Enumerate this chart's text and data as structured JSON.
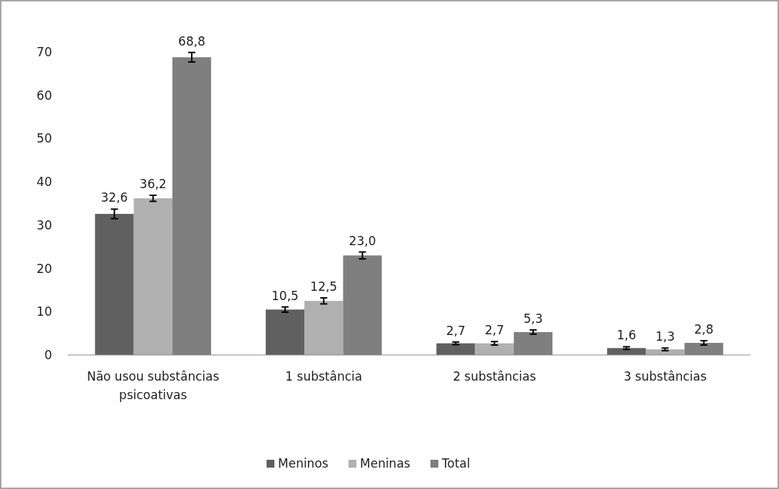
{
  "chart_data": {
    "type": "bar",
    "categories": [
      "Não usou substâncias psicoativas",
      "1 substância",
      "2 substâncias",
      "3 substâncias"
    ],
    "series": [
      {
        "name": "Meninos",
        "color": "#606060",
        "values": [
          32.6,
          10.5,
          2.7,
          1.6
        ],
        "errors": [
          1.1,
          0.6,
          0.3,
          0.3
        ],
        "value_labels": [
          "32,6",
          "10,5",
          "2,7",
          "1,6"
        ]
      },
      {
        "name": "Meninas",
        "color": "#b0b0b0",
        "values": [
          36.2,
          12.5,
          2.7,
          1.3
        ],
        "errors": [
          0.7,
          0.7,
          0.4,
          0.3
        ],
        "value_labels": [
          "36,2",
          "12,5",
          "2,7",
          "1,3"
        ]
      },
      {
        "name": "Total",
        "color": "#7f7f7f",
        "values": [
          68.8,
          23.0,
          5.3,
          2.8
        ],
        "errors": [
          1.1,
          0.8,
          0.5,
          0.5
        ],
        "value_labels": [
          "68,8",
          "23,0",
          "5,3",
          "2,8"
        ]
      }
    ],
    "ylim": [
      0,
      70
    ],
    "yticks": [
      0,
      10,
      20,
      30,
      40,
      50,
      60,
      70
    ],
    "grid": false,
    "legend": "bottom"
  }
}
